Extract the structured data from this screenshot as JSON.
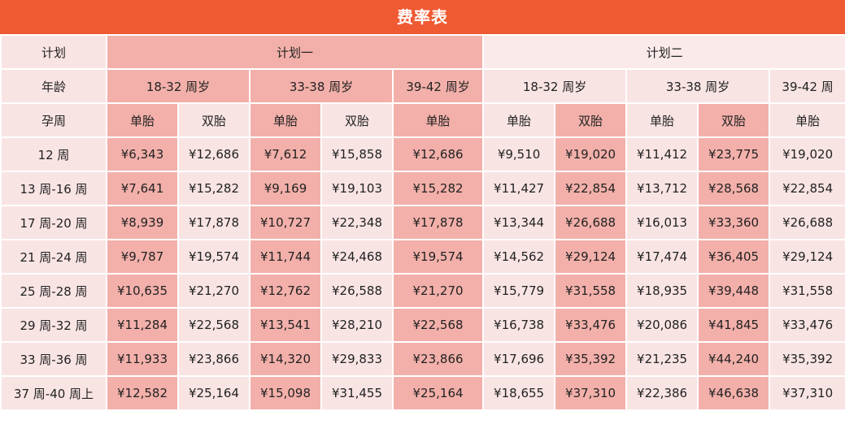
{
  "title": "费率表",
  "row_labels": {
    "plan": "计划",
    "age": "年龄",
    "term": "孕周"
  },
  "plans": [
    "计划一",
    "计划二"
  ],
  "age_groups": [
    "18-32 周岁",
    "33-38 周岁",
    "39-42 周岁",
    "18-32 周岁",
    "33-38 周岁",
    "39-42 周"
  ],
  "types": [
    "单胎",
    "双胎",
    "单胎",
    "双胎",
    "单胎",
    "单胎",
    "双胎",
    "单胎",
    "双胎",
    "单胎"
  ],
  "rows": [
    {
      "week": "12 周",
      "values": [
        "¥6,343",
        "¥12,686",
        "¥7,612",
        "¥15,858",
        "¥12,686",
        "¥9,510",
        "¥19,020",
        "¥11,412",
        "¥23,775",
        "¥19,020"
      ]
    },
    {
      "week": "13 周-16 周",
      "values": [
        "¥7,641",
        "¥15,282",
        "¥9,169",
        "¥19,103",
        "¥15,282",
        "¥11,427",
        "¥22,854",
        "¥13,712",
        "¥28,568",
        "¥22,854"
      ]
    },
    {
      "week": "17 周-20 周",
      "values": [
        "¥8,939",
        "¥17,878",
        "¥10,727",
        "¥22,348",
        "¥17,878",
        "¥13,344",
        "¥26,688",
        "¥16,013",
        "¥33,360",
        "¥26,688"
      ]
    },
    {
      "week": "21 周-24 周",
      "values": [
        "¥9,787",
        "¥19,574",
        "¥11,744",
        "¥24,468",
        "¥19,574",
        "¥14,562",
        "¥29,124",
        "¥17,474",
        "¥36,405",
        "¥29,124"
      ]
    },
    {
      "week": "25 周-28 周",
      "values": [
        "¥10,635",
        "¥21,270",
        "¥12,762",
        "¥26,588",
        "¥21,270",
        "¥15,779",
        "¥31,558",
        "¥18,935",
        "¥39,448",
        "¥31,558"
      ]
    },
    {
      "week": "29 周-32 周",
      "values": [
        "¥11,284",
        "¥22,568",
        "¥13,541",
        "¥28,210",
        "¥22,568",
        "¥16,738",
        "¥33,476",
        "¥20,086",
        "¥41,845",
        "¥33,476"
      ]
    },
    {
      "week": "33 周-36 周",
      "values": [
        "¥11,933",
        "¥23,866",
        "¥14,320",
        "¥29,833",
        "¥23,866",
        "¥17,696",
        "¥35,392",
        "¥21,235",
        "¥44,240",
        "¥35,392"
      ]
    },
    {
      "week": "37 周-40 周上",
      "values": [
        "¥12,582",
        "¥25,164",
        "¥15,098",
        "¥31,455",
        "¥25,164",
        "¥18,655",
        "¥37,310",
        "¥22,386",
        "¥46,638",
        "¥37,310"
      ]
    }
  ],
  "colors": {
    "title_bg": "#ef5a33",
    "highlight": "#f3b0aa",
    "light": "#f9e4e4"
  }
}
